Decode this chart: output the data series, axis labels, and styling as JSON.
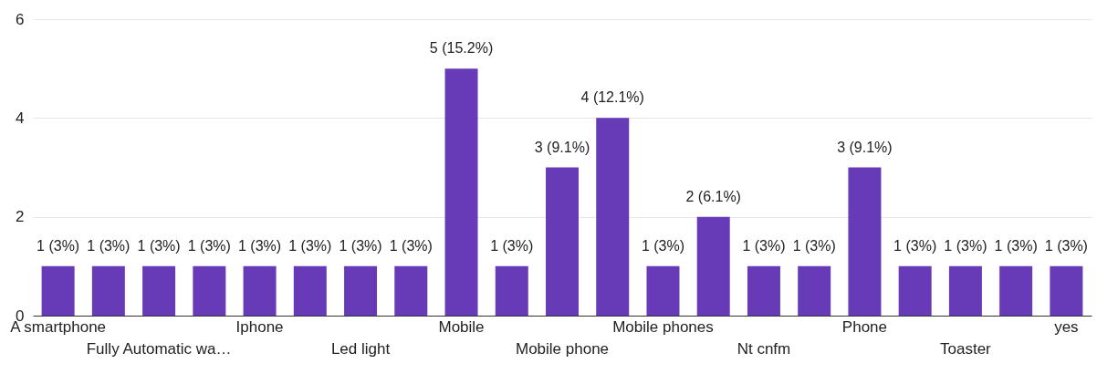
{
  "chart_data": {
    "type": "bar",
    "categories": [
      "A smartphone",
      null,
      "Fully Automatic wa…",
      null,
      "Iphone",
      null,
      "Led light",
      null,
      "Mobile",
      null,
      "Mobile phone",
      null,
      "Mobile phones",
      null,
      "Nt cnfm",
      null,
      "Phone",
      null,
      "Toaster",
      null,
      "yes"
    ],
    "values": [
      1,
      1,
      1,
      1,
      1,
      1,
      1,
      1,
      5,
      1,
      3,
      4,
      1,
      2,
      1,
      1,
      3,
      1,
      1,
      1,
      1
    ],
    "value_labels": [
      "1 (3%)",
      "1 (3%)",
      "1 (3%)",
      "1 (3%)",
      "1 (3%)",
      "1 (3%)",
      "1 (3%)",
      "1 (3%)",
      "5 (15.2%)",
      "1 (3%)",
      "3 (9.1%)",
      "4 (12.1%)",
      "1 (3%)",
      "2 (6.1%)",
      "1 (3%)",
      "1 (3%)",
      "3 (9.1%)",
      "1 (3%)",
      "1 (3%)",
      "1 (3%)",
      "1 (3%)"
    ],
    "color": "#673ab7",
    "ylim": [
      0,
      6
    ],
    "yticks": [
      0,
      2,
      4,
      6
    ],
    "grid": "y"
  }
}
